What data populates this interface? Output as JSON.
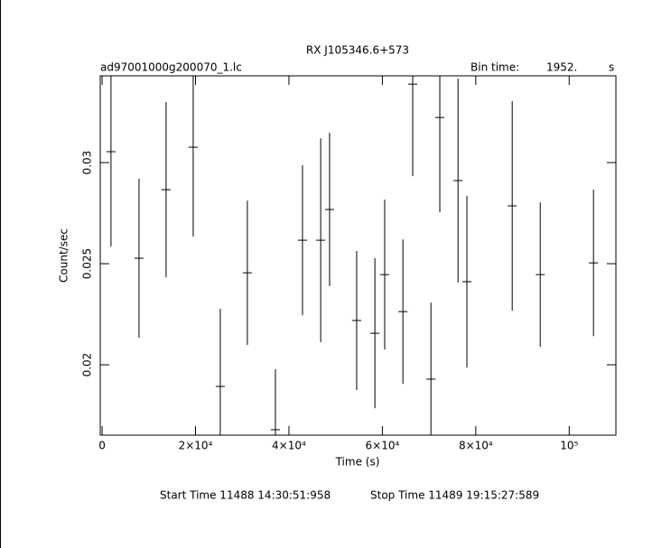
{
  "chart_data": {
    "type": "errorbar",
    "title": "RX J105346.6+573",
    "file_label": "ad97001000g200070_1.lc",
    "bin_label": "Bin time:",
    "bin_value": "1952.",
    "bin_unit": "s",
    "xlabel": "Time (s)",
    "ylabel": "Count/sec",
    "start_time": "Start Time 11488 14:30:51:958",
    "stop_time": "Stop Time 11489 19:15:27:589",
    "xlim": [
      -400,
      110000
    ],
    "ylim": [
      0.01652,
      0.03429
    ],
    "xticks": [
      0,
      {
        "value": 20000,
        "label": "2×10⁴"
      },
      {
        "value": 40000,
        "label": "4×10⁴"
      },
      {
        "value": 60000,
        "label": "6×10⁴"
      },
      {
        "value": 80000,
        "label": "8×10⁴"
      },
      {
        "value": 100000,
        "label": "10⁵"
      }
    ],
    "yticks": [
      0.02,
      0.025,
      0.03
    ],
    "series": [
      {
        "color": "#000000",
        "xerr": 976,
        "x": [
          1900,
          7900,
          13700,
          19500,
          25300,
          31100,
          37100,
          42900,
          46800,
          48700,
          54500,
          58400,
          60500,
          64400,
          66500,
          70400,
          72300,
          76200,
          78100,
          87800,
          93800,
          105200
        ],
        "values": [
          0.03054,
          0.02527,
          0.02866,
          0.03076,
          0.01893,
          0.02455,
          0.01679,
          0.02616,
          0.02616,
          0.02768,
          0.02219,
          0.02156,
          0.02446,
          0.02263,
          0.03388,
          0.01929,
          0.03223,
          0.02911,
          0.02411,
          0.02786,
          0.02446,
          0.02504
        ],
        "errors": [
          0.00469,
          0.00393,
          0.00433,
          0.00442,
          0.00384,
          0.00357,
          0.00299,
          0.00371,
          0.00504,
          0.00379,
          0.00344,
          0.00371,
          0.00371,
          0.00357,
          0.00455,
          0.00379,
          0.00469,
          0.00504,
          0.00424,
          0.00518,
          0.00357,
          0.00362
        ]
      }
    ]
  }
}
